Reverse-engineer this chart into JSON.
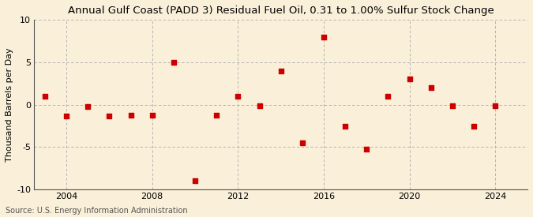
{
  "title": "Annual Gulf Coast (PADD 3) Residual Fuel Oil, 0.31 to 1.00% Sulfur Stock Change",
  "ylabel": "Thousand Barrels per Day",
  "source": "Source: U.S. Energy Information Administration",
  "background_color": "#faefd9",
  "plot_background_color": "#faefd9",
  "marker_color": "#cc0000",
  "years": [
    2003,
    2004,
    2005,
    2006,
    2007,
    2008,
    2009,
    2010,
    2011,
    2012,
    2013,
    2014,
    2015,
    2016,
    2017,
    2018,
    2019,
    2020,
    2021,
    2022,
    2023,
    2024
  ],
  "values": [
    1.0,
    -1.3,
    -0.2,
    -1.3,
    -1.2,
    -1.2,
    5.0,
    -9.0,
    -1.2,
    1.0,
    -0.1,
    4.0,
    -4.5,
    8.0,
    -2.5,
    -5.2,
    1.0,
    3.0,
    2.0,
    -0.1,
    -2.5,
    -0.1
  ],
  "ylim": [
    -10,
    10
  ],
  "xlim": [
    2002.5,
    2025.5
  ],
  "yticks": [
    -10,
    -5,
    0,
    5,
    10
  ],
  "xticks": [
    2004,
    2008,
    2012,
    2016,
    2020,
    2024
  ],
  "grid_color": "#aaaaaa",
  "title_fontsize": 9.5,
  "label_fontsize": 8,
  "tick_fontsize": 8,
  "source_fontsize": 7
}
